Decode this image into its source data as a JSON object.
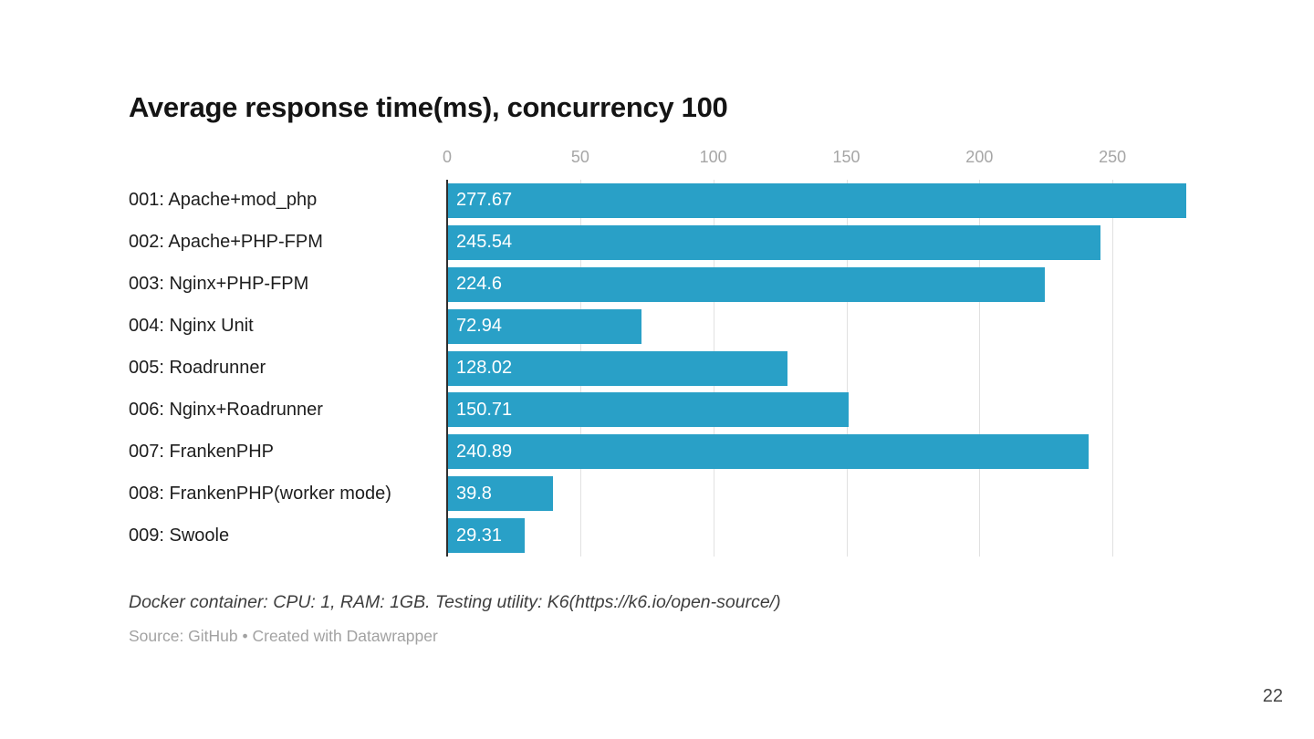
{
  "page_number": "22",
  "chart_data": {
    "type": "bar",
    "orientation": "horizontal",
    "title": "Average response time(ms), concurrency 100",
    "categories": [
      "001: Apache+mod_php",
      "002: Apache+PHP-FPM",
      "003: Nginx+PHP-FPM",
      "004: Nginx Unit",
      "005: Roadrunner",
      "006: Nginx+Roadrunner",
      "007: FrankenPHP",
      "008: FrankenPHP(worker mode)",
      "009: Swoole"
    ],
    "values": [
      277.67,
      245.54,
      224.6,
      72.94,
      128.02,
      150.71,
      240.89,
      39.8,
      29.31
    ],
    "value_labels": [
      "277.67",
      "245.54",
      "224.6",
      "72.94",
      "128.02",
      "150.71",
      "240.89",
      "39.8",
      "29.31"
    ],
    "x_ticks": [
      0,
      50,
      100,
      150,
      200,
      250
    ],
    "xlim": [
      0,
      278.4
    ],
    "xlabel": "",
    "ylabel": "",
    "grid": "vertical",
    "legend": "none",
    "bar_color": "#29a0c7",
    "value_label_color": "#ffffff",
    "tick_label_color": "#a6a6a6",
    "note": "Docker container: CPU: 1, RAM: 1GB. Testing utility: K6(https://k6.io/open-source/)",
    "source": "Source: GitHub • Created with Datawrapper"
  }
}
